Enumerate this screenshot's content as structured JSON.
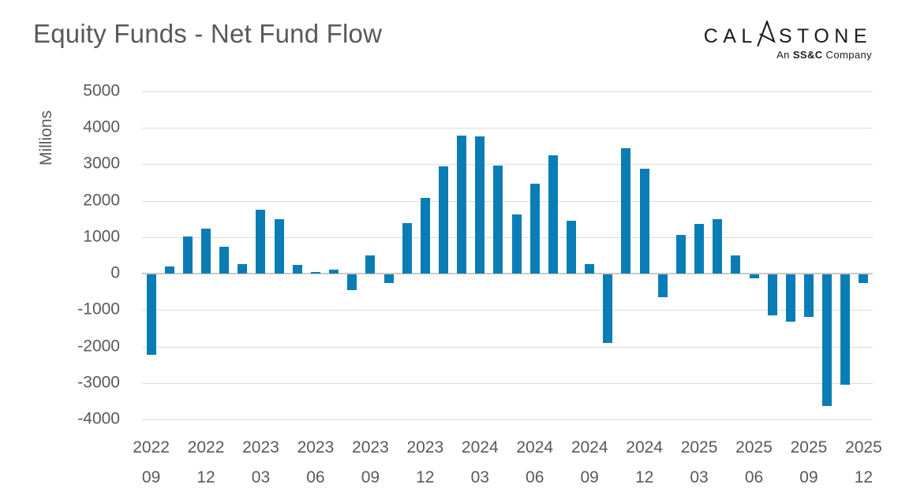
{
  "title": "Equity Funds - Net Fund Flow",
  "logo": {
    "word_start": "CAL",
    "a_icon": "stylized-a",
    "word_end": "STONE",
    "subtitle_prefix": "An ",
    "subtitle_bold": "SS&C",
    "subtitle_suffix": " Company"
  },
  "colors": {
    "bar": "#0b7db5",
    "axis_text": "#595959",
    "gridline": "#dcdcdc",
    "zero_line": "#c9c9c9",
    "logo_text": "#1b1b1b"
  },
  "chart_data": {
    "type": "bar",
    "title": "Equity Funds - Net Fund Flow",
    "xlabel": "",
    "ylabel": "Millions",
    "ylim": [
      -4000,
      5000
    ],
    "ytick_step": 1000,
    "grid": true,
    "legend": "none",
    "bar_color": "#0b7db5",
    "x": [
      "2022-09",
      "2022-10",
      "2022-11",
      "2022-12",
      "2023-01",
      "2023-02",
      "2023-03",
      "2023-04",
      "2023-05",
      "2023-06",
      "2023-07",
      "2023-08",
      "2023-09",
      "2023-10",
      "2023-11",
      "2023-12",
      "2024-01",
      "2024-02",
      "2024-03",
      "2024-04",
      "2024-05",
      "2024-06",
      "2024-07",
      "2024-08",
      "2024-09",
      "2024-10",
      "2024-11",
      "2024-12",
      "2025-01",
      "2025-02",
      "2025-03",
      "2025-04",
      "2025-05",
      "2025-06",
      "2025-07",
      "2025-08",
      "2025-09",
      "2025-10",
      "2025-11",
      "2025-12"
    ],
    "values": [
      -2200,
      190,
      1030,
      1240,
      730,
      270,
      1760,
      1500,
      250,
      50,
      110,
      -430,
      490,
      -230,
      1390,
      2090,
      2950,
      3790,
      3770,
      2960,
      1630,
      2470,
      3250,
      1460,
      260,
      -1890,
      3450,
      2890,
      -630,
      1060,
      1360,
      1500,
      510,
      -100,
      -1130,
      -1290,
      -1170,
      -3610,
      -3020,
      -230
    ],
    "xtick_every": 3,
    "xtick_labels": [
      {
        "year": "2022",
        "month": "09"
      },
      {
        "year": "2022",
        "month": "12"
      },
      {
        "year": "2023",
        "month": "03"
      },
      {
        "year": "2023",
        "month": "06"
      },
      {
        "year": "2023",
        "month": "09"
      },
      {
        "year": "2023",
        "month": "12"
      },
      {
        "year": "2024",
        "month": "03"
      },
      {
        "year": "2024",
        "month": "06"
      },
      {
        "year": "2024",
        "month": "09"
      },
      {
        "year": "2024",
        "month": "12"
      },
      {
        "year": "2025",
        "month": "03"
      },
      {
        "year": "2025",
        "month": "06"
      },
      {
        "year": "2025",
        "month": "09"
      },
      {
        "year": "2025",
        "month": "12"
      }
    ]
  }
}
